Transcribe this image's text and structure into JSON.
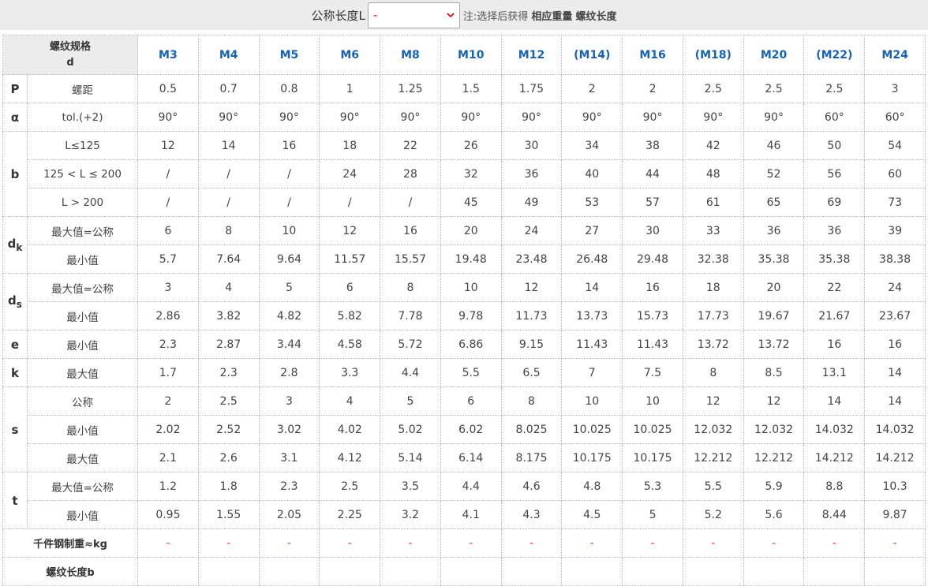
{
  "header": {
    "length_label": "公称长度L",
    "select_value": "-",
    "note": "注:选择后获得",
    "note_weight": "相应重量",
    "note_thread": "螺纹长度"
  },
  "table": {
    "corner": [
      "螺纹规格",
      "d"
    ],
    "columns": [
      "M3",
      "M4",
      "M5",
      "M6",
      "M8",
      "M10",
      "M12",
      "(M14)",
      "M16",
      "(M18)",
      "M20",
      "(M22)",
      "M24"
    ],
    "groups": [
      {
        "symbol": "P",
        "rows": [
          {
            "label": "螺距",
            "values": [
              "0.5",
              "0.7",
              "0.8",
              "1",
              "1.25",
              "1.5",
              "1.75",
              "2",
              "2",
              "2.5",
              "2.5",
              "2.5",
              "3"
            ]
          }
        ]
      },
      {
        "symbol": "α",
        "rows": [
          {
            "label": "tol.(+2)",
            "values": [
              "90°",
              "90°",
              "90°",
              "90°",
              "90°",
              "90°",
              "90°",
              "90°",
              "90°",
              "90°",
              "90°",
              "60°",
              "60°"
            ]
          }
        ]
      },
      {
        "symbol": "b",
        "rows": [
          {
            "label": "L≤125",
            "values": [
              "12",
              "14",
              "16",
              "18",
              "22",
              "26",
              "30",
              "34",
              "38",
              "42",
              "46",
              "50",
              "54"
            ]
          },
          {
            "label": "125 < L ≤ 200",
            "values": [
              "/",
              "/",
              "/",
              "24",
              "28",
              "32",
              "36",
              "40",
              "44",
              "48",
              "52",
              "56",
              "60"
            ]
          },
          {
            "label": "L > 200",
            "values": [
              "/",
              "/",
              "/",
              "/",
              "/",
              "45",
              "49",
              "53",
              "57",
              "61",
              "65",
              "69",
              "73"
            ]
          }
        ]
      },
      {
        "symbol": {
          "base": "d",
          "sub": "k"
        },
        "rows": [
          {
            "label": "最大值=公称",
            "values": [
              "6",
              "8",
              "10",
              "12",
              "16",
              "20",
              "24",
              "27",
              "30",
              "33",
              "36",
              "36",
              "39"
            ]
          },
          {
            "label": "最小值",
            "values": [
              "5.7",
              "7.64",
              "9.64",
              "11.57",
              "15.57",
              "19.48",
              "23.48",
              "26.48",
              "29.48",
              "32.38",
              "35.38",
              "35.38",
              "38.38"
            ]
          }
        ]
      },
      {
        "symbol": {
          "base": "d",
          "sub": "s"
        },
        "rows": [
          {
            "label": "最大值=公称",
            "values": [
              "3",
              "4",
              "5",
              "6",
              "8",
              "10",
              "12",
              "14",
              "16",
              "18",
              "20",
              "22",
              "24"
            ]
          },
          {
            "label": "最小值",
            "values": [
              "2.86",
              "3.82",
              "4.82",
              "5.82",
              "7.78",
              "9.78",
              "11.73",
              "13.73",
              "15.73",
              "17.73",
              "19.67",
              "21.67",
              "23.67"
            ]
          }
        ]
      },
      {
        "symbol": "e",
        "rows": [
          {
            "label": "最小值",
            "values": [
              "2.3",
              "2.87",
              "3.44",
              "4.58",
              "5.72",
              "6.86",
              "9.15",
              "11.43",
              "11.43",
              "13.72",
              "13.72",
              "16",
              "16"
            ]
          }
        ]
      },
      {
        "symbol": "k",
        "rows": [
          {
            "label": "最大值",
            "values": [
              "1.7",
              "2.3",
              "2.8",
              "3.3",
              "4.4",
              "5.5",
              "6.5",
              "7",
              "7.5",
              "8",
              "8.5",
              "13.1",
              "14"
            ]
          }
        ]
      },
      {
        "symbol": "s",
        "rows": [
          {
            "label": "公称",
            "values": [
              "2",
              "2.5",
              "3",
              "4",
              "5",
              "6",
              "8",
              "10",
              "10",
              "12",
              "12",
              "14",
              "14"
            ]
          },
          {
            "label": "最小值",
            "values": [
              "2.02",
              "2.52",
              "3.02",
              "4.02",
              "5.02",
              "6.02",
              "8.025",
              "10.025",
              "10.025",
              "12.032",
              "12.032",
              "14.032",
              "14.032"
            ]
          },
          {
            "label": "最大值",
            "values": [
              "2.1",
              "2.6",
              "3.1",
              "4.12",
              "5.14",
              "6.14",
              "8.175",
              "10.175",
              "10.175",
              "12.212",
              "12.212",
              "14.212",
              "14.212"
            ]
          }
        ]
      },
      {
        "symbol": "t",
        "rows": [
          {
            "label": "最大值=公称",
            "values": [
              "1.2",
              "1.8",
              "2.3",
              "2.5",
              "3.5",
              "4.4",
              "4.6",
              "4.8",
              "5.3",
              "5.5",
              "5.9",
              "8.8",
              "10.3"
            ]
          },
          {
            "label": "最小值",
            "values": [
              "0.95",
              "1.55",
              "2.05",
              "2.25",
              "3.2",
              "4.1",
              "4.3",
              "4.5",
              "5",
              "5.2",
              "5.6",
              "8.44",
              "9.87"
            ]
          }
        ]
      }
    ],
    "weight": {
      "label": "千件钢制重≈kg",
      "values": [
        "-",
        "-",
        "-",
        "-",
        "-",
        "-",
        "-",
        "-",
        "-",
        "-",
        "-",
        "-",
        "-"
      ]
    },
    "thread_length": {
      "label": "螺纹长度b"
    }
  }
}
